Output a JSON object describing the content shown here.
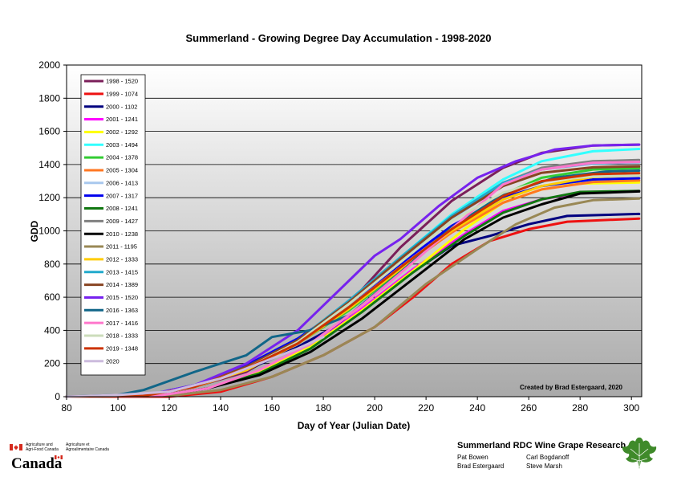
{
  "chart_data": {
    "type": "line",
    "title": "Summerland - Growing Degree Day Accumulation - 1998-2020",
    "xlabel": "Day of Year (Julian Date)",
    "ylabel": "GDD",
    "xlim": [
      80,
      304
    ],
    "ylim": [
      0,
      2000
    ],
    "xticks": [
      80,
      100,
      120,
      140,
      160,
      180,
      200,
      220,
      240,
      260,
      280,
      300
    ],
    "yticks": [
      0,
      200,
      400,
      600,
      800,
      1000,
      1200,
      1400,
      1600,
      1800,
      2000
    ],
    "grid": true,
    "legend_position": "top-left",
    "annotation": "Created by Brad Estergaard, 2020",
    "series": [
      {
        "name": "1998 - 1520",
        "color": "#7b1f5a",
        "x": [
          80,
          110,
          130,
          150,
          170,
          190,
          210,
          230,
          250,
          265,
          285,
          303
        ],
        "y": [
          0,
          5,
          60,
          150,
          330,
          560,
          900,
          1180,
          1380,
          1470,
          1515,
          1520
        ]
      },
      {
        "name": "1999 - 1074",
        "color": "#ee1111",
        "x": [
          80,
          120,
          140,
          160,
          180,
          200,
          215,
          230,
          245,
          260,
          275,
          303
        ],
        "y": [
          0,
          0,
          30,
          120,
          250,
          420,
          600,
          800,
          940,
          1010,
          1055,
          1074
        ]
      },
      {
        "name": "2000 - 1102",
        "color": "#00007f",
        "x": [
          80,
          110,
          130,
          150,
          170,
          190,
          210,
          230,
          245,
          260,
          275,
          303
        ],
        "y": [
          0,
          5,
          60,
          160,
          300,
          470,
          700,
          910,
          970,
          1040,
          1090,
          1102
        ]
      },
      {
        "name": "2001 - 1241",
        "color": "#ff00ff",
        "x": [
          80,
          115,
          135,
          155,
          175,
          195,
          215,
          235,
          250,
          265,
          280,
          303
        ],
        "y": [
          0,
          5,
          50,
          140,
          300,
          530,
          770,
          980,
          1120,
          1190,
          1230,
          1241
        ]
      },
      {
        "name": "2002 - 1292",
        "color": "#ffff00",
        "x": [
          80,
          115,
          135,
          155,
          175,
          195,
          215,
          235,
          250,
          265,
          280,
          303
        ],
        "y": [
          0,
          5,
          50,
          150,
          300,
          520,
          760,
          1010,
          1170,
          1250,
          1285,
          1292
        ]
      },
      {
        "name": "2003 - 1494",
        "color": "#33ffff",
        "x": [
          80,
          110,
          130,
          150,
          170,
          190,
          210,
          230,
          250,
          265,
          285,
          303
        ],
        "y": [
          0,
          5,
          60,
          170,
          330,
          570,
          840,
          1100,
          1310,
          1420,
          1480,
          1494
        ]
      },
      {
        "name": "2004 - 1378",
        "color": "#33cc33",
        "x": [
          80,
          110,
          130,
          150,
          170,
          190,
          210,
          230,
          250,
          265,
          285,
          303
        ],
        "y": [
          0,
          5,
          70,
          170,
          320,
          520,
          760,
          1020,
          1220,
          1320,
          1370,
          1378
        ]
      },
      {
        "name": "2005 - 1304",
        "color": "#ff7722",
        "x": [
          80,
          110,
          130,
          150,
          170,
          190,
          210,
          230,
          250,
          265,
          285,
          303
        ],
        "y": [
          0,
          5,
          60,
          160,
          320,
          530,
          770,
          990,
          1170,
          1250,
          1295,
          1304
        ]
      },
      {
        "name": "2006 - 1413",
        "color": "#a8c8ee",
        "x": [
          80,
          110,
          130,
          150,
          170,
          190,
          210,
          230,
          250,
          265,
          285,
          303
        ],
        "y": [
          0,
          5,
          60,
          170,
          330,
          560,
          820,
          1070,
          1280,
          1370,
          1405,
          1413
        ]
      },
      {
        "name": "2007 - 1317",
        "color": "#0000ee",
        "x": [
          80,
          110,
          130,
          150,
          170,
          190,
          210,
          230,
          250,
          265,
          285,
          303
        ],
        "y": [
          0,
          5,
          70,
          190,
          350,
          560,
          800,
          1030,
          1200,
          1270,
          1310,
          1317
        ]
      },
      {
        "name": "2008 - 1241",
        "color": "#117711",
        "x": [
          80,
          115,
          135,
          155,
          175,
          195,
          215,
          235,
          250,
          265,
          280,
          303
        ],
        "y": [
          0,
          5,
          50,
          140,
          290,
          510,
          750,
          970,
          1110,
          1190,
          1235,
          1241
        ]
      },
      {
        "name": "2009 - 1427",
        "color": "#808080",
        "x": [
          80,
          110,
          130,
          150,
          170,
          190,
          210,
          230,
          250,
          265,
          285,
          303
        ],
        "y": [
          0,
          5,
          60,
          170,
          330,
          560,
          830,
          1090,
          1290,
          1380,
          1420,
          1427
        ]
      },
      {
        "name": "2010 - 1238",
        "color": "#000000",
        "x": [
          80,
          115,
          135,
          155,
          175,
          195,
          215,
          235,
          250,
          265,
          280,
          303
        ],
        "y": [
          0,
          5,
          50,
          130,
          270,
          470,
          710,
          950,
          1080,
          1160,
          1225,
          1238
        ]
      },
      {
        "name": "2011 - 1195",
        "color": "#998855",
        "x": [
          80,
          120,
          140,
          160,
          180,
          200,
          220,
          240,
          255,
          270,
          285,
          303
        ],
        "y": [
          0,
          5,
          40,
          120,
          250,
          420,
          680,
          890,
          1040,
          1140,
          1185,
          1195
        ]
      },
      {
        "name": "2012 - 1333",
        "color": "#ffcc00",
        "x": [
          80,
          110,
          130,
          150,
          170,
          190,
          210,
          230,
          250,
          265,
          285,
          303
        ],
        "y": [
          0,
          5,
          60,
          160,
          320,
          530,
          770,
          1000,
          1190,
          1270,
          1325,
          1333
        ]
      },
      {
        "name": "2013 - 1415",
        "color": "#22aacc",
        "x": [
          80,
          110,
          130,
          150,
          170,
          190,
          210,
          230,
          250,
          265,
          285,
          303
        ],
        "y": [
          0,
          5,
          70,
          180,
          340,
          580,
          840,
          1090,
          1290,
          1370,
          1408,
          1415
        ]
      },
      {
        "name": "2014 - 1389",
        "color": "#884422",
        "x": [
          80,
          110,
          130,
          150,
          170,
          190,
          210,
          230,
          250,
          265,
          285,
          303
        ],
        "y": [
          0,
          5,
          60,
          180,
          340,
          570,
          830,
          1080,
          1270,
          1350,
          1383,
          1389
        ]
      },
      {
        "name": "2015 - 1520",
        "color": "#7722ee",
        "x": [
          80,
          110,
          130,
          150,
          170,
          190,
          200,
          210,
          225,
          240,
          255,
          270,
          285,
          303
        ],
        "y": [
          0,
          5,
          70,
          200,
          400,
          700,
          850,
          950,
          1150,
          1320,
          1420,
          1490,
          1515,
          1520
        ]
      },
      {
        "name": "2016 - 1363",
        "color": "#116688",
        "x": [
          80,
          100,
          110,
          130,
          150,
          160,
          175,
          190,
          210,
          230,
          250,
          270,
          290,
          303
        ],
        "y": [
          0,
          10,
          40,
          150,
          250,
          360,
          400,
          490,
          750,
          1020,
          1220,
          1320,
          1358,
          1363
        ]
      },
      {
        "name": "2017 - 1416",
        "color": "#ff77cc",
        "x": [
          80,
          115,
          135,
          155,
          175,
          195,
          215,
          235,
          250,
          265,
          285,
          303
        ],
        "y": [
          0,
          5,
          50,
          160,
          320,
          550,
          810,
          1080,
          1280,
          1370,
          1410,
          1416
        ]
      },
      {
        "name": "2018 - 1333",
        "color": "#ccddbb",
        "x": [
          80,
          110,
          130,
          150,
          170,
          190,
          210,
          230,
          250,
          265,
          285,
          303
        ],
        "y": [
          0,
          5,
          60,
          170,
          330,
          560,
          810,
          1060,
          1230,
          1300,
          1328,
          1333
        ]
      },
      {
        "name": "2019 - 1348",
        "color": "#cc3300",
        "x": [
          80,
          110,
          130,
          150,
          170,
          190,
          210,
          230,
          250,
          265,
          285,
          303
        ],
        "y": [
          0,
          5,
          60,
          170,
          320,
          540,
          780,
          1010,
          1210,
          1300,
          1342,
          1348
        ]
      },
      {
        "name": "2020",
        "color": "#ccbbdd",
        "x": [
          80,
          100,
          120,
          140,
          160,
          170,
          180
        ],
        "y": [
          0,
          10,
          30,
          110,
          230,
          290,
          360
        ]
      }
    ]
  },
  "footer": {
    "agency_en": "Agriculture and Agri-Food Canada",
    "agency_fr": "Agriculture et Agroalimentaire Canada",
    "canada_wordmark": "Canada",
    "research_title": "Summerland RDC Wine Grape Research",
    "people": [
      "Pat Bowen",
      "Carl Bogdanoff",
      "Brad Estergaard",
      "Steve Marsh"
    ]
  },
  "colors": {
    "leaf_green": "#3f8a2a",
    "flag_red": "#d52b1e"
  },
  "icons": {
    "flag": "canada-flag-icon",
    "leaf": "grape-leaf-icon"
  }
}
